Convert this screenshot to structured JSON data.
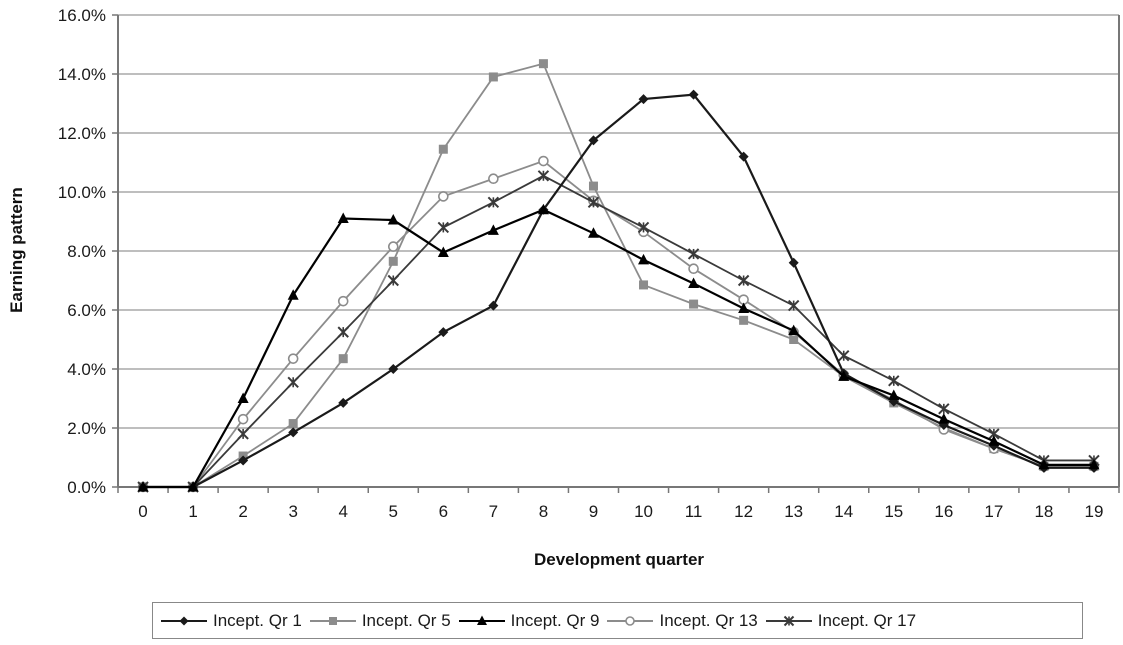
{
  "chart_data": {
    "type": "line",
    "title": "",
    "xlabel": "Development quarter",
    "ylabel": "Earning pattern",
    "ylim": [
      0,
      16
    ],
    "yticks": [
      "0.0%",
      "2.0%",
      "4.0%",
      "6.0%",
      "8.0%",
      "10.0%",
      "12.0%",
      "14.0%",
      "16.0%"
    ],
    "grid": "horizontal",
    "legend_position": "bottom",
    "categories": [
      "0",
      "1",
      "2",
      "3",
      "4",
      "5",
      "6",
      "7",
      "8",
      "9",
      "10",
      "11",
      "12",
      "13",
      "14",
      "15",
      "16",
      "17",
      "18",
      "19"
    ],
    "series": [
      {
        "name": "Incept. Qr 1",
        "marker": "diamond",
        "color": "#1a1a1a",
        "values": [
          0.0,
          0.0,
          0.9,
          1.85,
          2.85,
          4.0,
          5.25,
          6.15,
          9.4,
          11.75,
          13.15,
          13.3,
          11.2,
          7.6,
          3.85,
          2.9,
          2.1,
          1.4,
          0.65,
          0.65
        ]
      },
      {
        "name": "Incept. Qr 5",
        "marker": "square",
        "color": "#8c8c8c",
        "values": [
          0.0,
          0.0,
          1.05,
          2.15,
          4.35,
          7.65,
          11.45,
          13.9,
          14.35,
          10.2,
          6.85,
          6.2,
          5.65,
          5.0,
          3.75,
          2.85,
          2.0,
          1.3,
          0.7,
          0.7
        ]
      },
      {
        "name": "Incept. Qr 9",
        "marker": "triangle",
        "color": "#000000",
        "values": [
          0.0,
          0.0,
          3.0,
          6.5,
          9.1,
          9.05,
          7.95,
          8.7,
          9.4,
          8.6,
          7.7,
          6.9,
          6.05,
          5.3,
          3.75,
          3.1,
          2.3,
          1.55,
          0.75,
          0.75
        ]
      },
      {
        "name": "Incept. Qr 13",
        "marker": "circle",
        "color": "#8c8c8c",
        "values": [
          0.0,
          0.0,
          2.3,
          4.35,
          6.3,
          8.15,
          9.85,
          10.45,
          11.05,
          9.7,
          8.65,
          7.4,
          6.35,
          5.25,
          3.8,
          2.95,
          1.95,
          1.3,
          0.7,
          0.7
        ]
      },
      {
        "name": "Incept. Qr 17",
        "marker": "star",
        "color": "#3a3a3a",
        "values": [
          0.0,
          0.0,
          1.8,
          3.55,
          5.25,
          7.0,
          8.8,
          9.65,
          10.55,
          9.65,
          8.8,
          7.9,
          7.0,
          6.15,
          4.45,
          3.6,
          2.65,
          1.8,
          0.9,
          0.9
        ]
      }
    ]
  },
  "legend": {
    "items": [
      {
        "label": "Incept. Qr 1"
      },
      {
        "label": "Incept. Qr 5"
      },
      {
        "label": "Incept. Qr 9"
      },
      {
        "label": "Incept. Qr 13"
      },
      {
        "label": "Incept. Qr 17"
      }
    ]
  }
}
